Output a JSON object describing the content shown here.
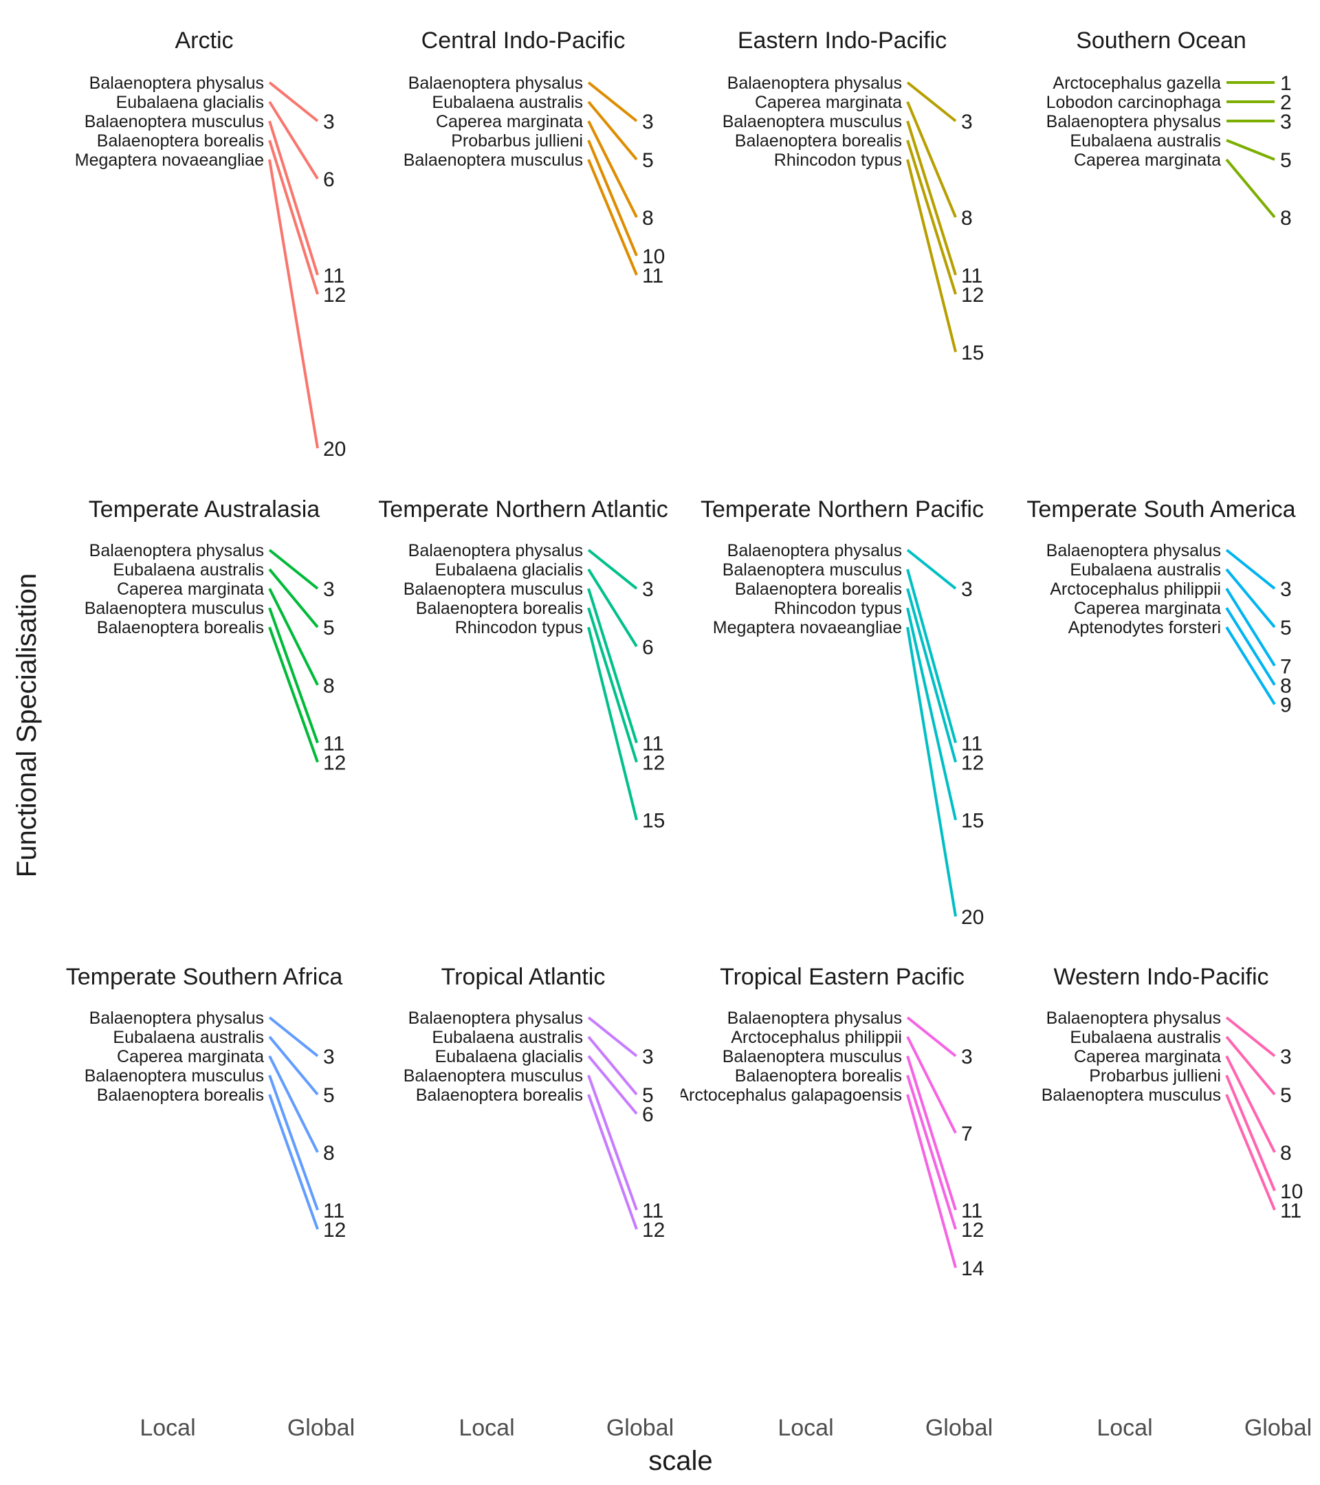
{
  "chart_data": {
    "type": "slope",
    "xlabel": "scale",
    "ylabel": "Functional Specialisation",
    "x_categories": [
      "Local",
      "Global"
    ],
    "grid": false,
    "legend": "none",
    "panels": [
      {
        "title": "Arctic",
        "color": "#F8766D",
        "series": [
          {
            "name": "Balaenoptera physalus",
            "local": 1,
            "global": 3
          },
          {
            "name": "Eubalaena glacialis",
            "local": 2,
            "global": 6
          },
          {
            "name": "Balaenoptera musculus",
            "local": 3,
            "global": 11
          },
          {
            "name": "Balaenoptera borealis",
            "local": 4,
            "global": 12
          },
          {
            "name": "Megaptera novaeangliae",
            "local": 5,
            "global": 20
          }
        ]
      },
      {
        "title": "Central Indo-Pacific",
        "color": "#DE8C00",
        "series": [
          {
            "name": "Balaenoptera physalus",
            "local": 1,
            "global": 3
          },
          {
            "name": "Eubalaena australis",
            "local": 2,
            "global": 5
          },
          {
            "name": "Caperea marginata",
            "local": 3,
            "global": 8
          },
          {
            "name": "Probarbus jullieni",
            "local": 4,
            "global": 10
          },
          {
            "name": "Balaenoptera musculus",
            "local": 5,
            "global": 11
          }
        ]
      },
      {
        "title": "Eastern Indo-Pacific",
        "color": "#B79F00",
        "series": [
          {
            "name": "Balaenoptera physalus",
            "local": 1,
            "global": 3
          },
          {
            "name": "Caperea marginata",
            "local": 2,
            "global": 8
          },
          {
            "name": "Balaenoptera musculus",
            "local": 3,
            "global": 11
          },
          {
            "name": "Balaenoptera borealis",
            "local": 4,
            "global": 12
          },
          {
            "name": "Rhincodon typus",
            "local": 5,
            "global": 15
          }
        ]
      },
      {
        "title": "Southern Ocean",
        "color": "#7CAE00",
        "series": [
          {
            "name": "Arctocephalus gazella",
            "local": 1,
            "global": 1
          },
          {
            "name": "Lobodon carcinophaga",
            "local": 2,
            "global": 2
          },
          {
            "name": "Balaenoptera physalus",
            "local": 3,
            "global": 3
          },
          {
            "name": "Eubalaena australis",
            "local": 4,
            "global": 5
          },
          {
            "name": "Caperea marginata",
            "local": 5,
            "global": 8
          }
        ]
      },
      {
        "title": "Temperate Australasia",
        "color": "#00BA38",
        "series": [
          {
            "name": "Balaenoptera physalus",
            "local": 1,
            "global": 3
          },
          {
            "name": "Eubalaena australis",
            "local": 2,
            "global": 5
          },
          {
            "name": "Caperea marginata",
            "local": 3,
            "global": 8
          },
          {
            "name": "Balaenoptera musculus",
            "local": 4,
            "global": 11
          },
          {
            "name": "Balaenoptera borealis",
            "local": 5,
            "global": 12
          }
        ]
      },
      {
        "title": "Temperate Northern Atlantic",
        "color": "#00C08B",
        "series": [
          {
            "name": "Balaenoptera physalus",
            "local": 1,
            "global": 3
          },
          {
            "name": "Eubalaena glacialis",
            "local": 2,
            "global": 6
          },
          {
            "name": "Balaenoptera musculus",
            "local": 3,
            "global": 11
          },
          {
            "name": "Balaenoptera borealis",
            "local": 4,
            "global": 12
          },
          {
            "name": "Rhincodon typus",
            "local": 5,
            "global": 15
          }
        ]
      },
      {
        "title": "Temperate Northern Pacific",
        "color": "#00BFC4",
        "series": [
          {
            "name": "Balaenoptera physalus",
            "local": 1,
            "global": 3
          },
          {
            "name": "Balaenoptera musculus",
            "local": 2,
            "global": 11
          },
          {
            "name": "Balaenoptera borealis",
            "local": 3,
            "global": 12
          },
          {
            "name": "Rhincodon typus",
            "local": 4,
            "global": 15
          },
          {
            "name": "Megaptera novaeangliae",
            "local": 5,
            "global": 20
          }
        ]
      },
      {
        "title": "Temperate South America",
        "color": "#00B4F0",
        "series": [
          {
            "name": "Balaenoptera physalus",
            "local": 1,
            "global": 3
          },
          {
            "name": "Eubalaena australis",
            "local": 2,
            "global": 5
          },
          {
            "name": "Arctocephalus philippii",
            "local": 3,
            "global": 7
          },
          {
            "name": "Caperea marginata",
            "local": 4,
            "global": 8
          },
          {
            "name": "Aptenodytes forsteri",
            "local": 5,
            "global": 9
          }
        ]
      },
      {
        "title": "Temperate Southern Africa",
        "color": "#619CFF",
        "series": [
          {
            "name": "Balaenoptera physalus",
            "local": 1,
            "global": 3
          },
          {
            "name": "Eubalaena australis",
            "local": 2,
            "global": 5
          },
          {
            "name": "Caperea marginata",
            "local": 3,
            "global": 8
          },
          {
            "name": "Balaenoptera musculus",
            "local": 4,
            "global": 11
          },
          {
            "name": "Balaenoptera borealis",
            "local": 5,
            "global": 12
          }
        ]
      },
      {
        "title": "Tropical Atlantic",
        "color": "#C77CFF",
        "series": [
          {
            "name": "Balaenoptera physalus",
            "local": 1,
            "global": 3
          },
          {
            "name": "Eubalaena australis",
            "local": 2,
            "global": 5
          },
          {
            "name": "Eubalaena glacialis",
            "local": 3,
            "global": 6
          },
          {
            "name": "Balaenoptera musculus",
            "local": 4,
            "global": 11
          },
          {
            "name": "Balaenoptera borealis",
            "local": 5,
            "global": 12
          }
        ]
      },
      {
        "title": "Tropical Eastern Pacific",
        "color": "#F564E3",
        "series": [
          {
            "name": "Balaenoptera physalus",
            "local": 1,
            "global": 3
          },
          {
            "name": "Arctocephalus philippii",
            "local": 2,
            "global": 7
          },
          {
            "name": "Balaenoptera musculus",
            "local": 3,
            "global": 11
          },
          {
            "name": "Balaenoptera borealis",
            "local": 4,
            "global": 12
          },
          {
            "name": "Arctocephalus galapagoensis",
            "local": 5,
            "global": 14
          }
        ]
      },
      {
        "title": "Western Indo-Pacific",
        "color": "#FF64B0",
        "series": [
          {
            "name": "Balaenoptera physalus",
            "local": 1,
            "global": 3
          },
          {
            "name": "Eubalaena australis",
            "local": 2,
            "global": 5
          },
          {
            "name": "Caperea marginata",
            "local": 3,
            "global": 8
          },
          {
            "name": "Probarbus jullieni",
            "local": 4,
            "global": 10
          },
          {
            "name": "Balaenoptera musculus",
            "local": 5,
            "global": 11
          }
        ]
      }
    ]
  }
}
